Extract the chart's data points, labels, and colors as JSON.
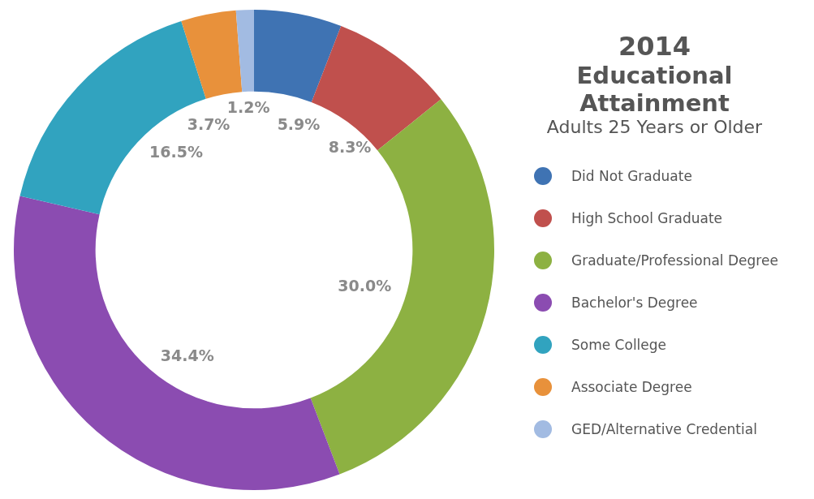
{
  "chart_data": {
    "type": "donut",
    "title": "2014",
    "subtitle": "Educational Attainment",
    "legend_title": "Adults 25 Years or Older",
    "categories": [
      "Did Not Graduate",
      "High School Graduate",
      "Graduate/Professional Degree",
      "Bachelor's Degree",
      "Some College",
      "Associate Degree",
      "GED/Alternative Credential"
    ],
    "values": [
      5.9,
      8.3,
      30.0,
      34.4,
      16.5,
      3.7,
      1.2
    ],
    "value_labels": [
      "5.9%",
      "8.3%",
      "30.0%",
      "34.4%",
      "16.5%",
      "3.7%",
      "1.2%"
    ],
    "colors": [
      "#3f73b3",
      "#c0504d",
      "#8db142",
      "#8b4cb1",
      "#31a3bf",
      "#e8913b",
      "#a2bbe2"
    ],
    "legend": "right"
  }
}
